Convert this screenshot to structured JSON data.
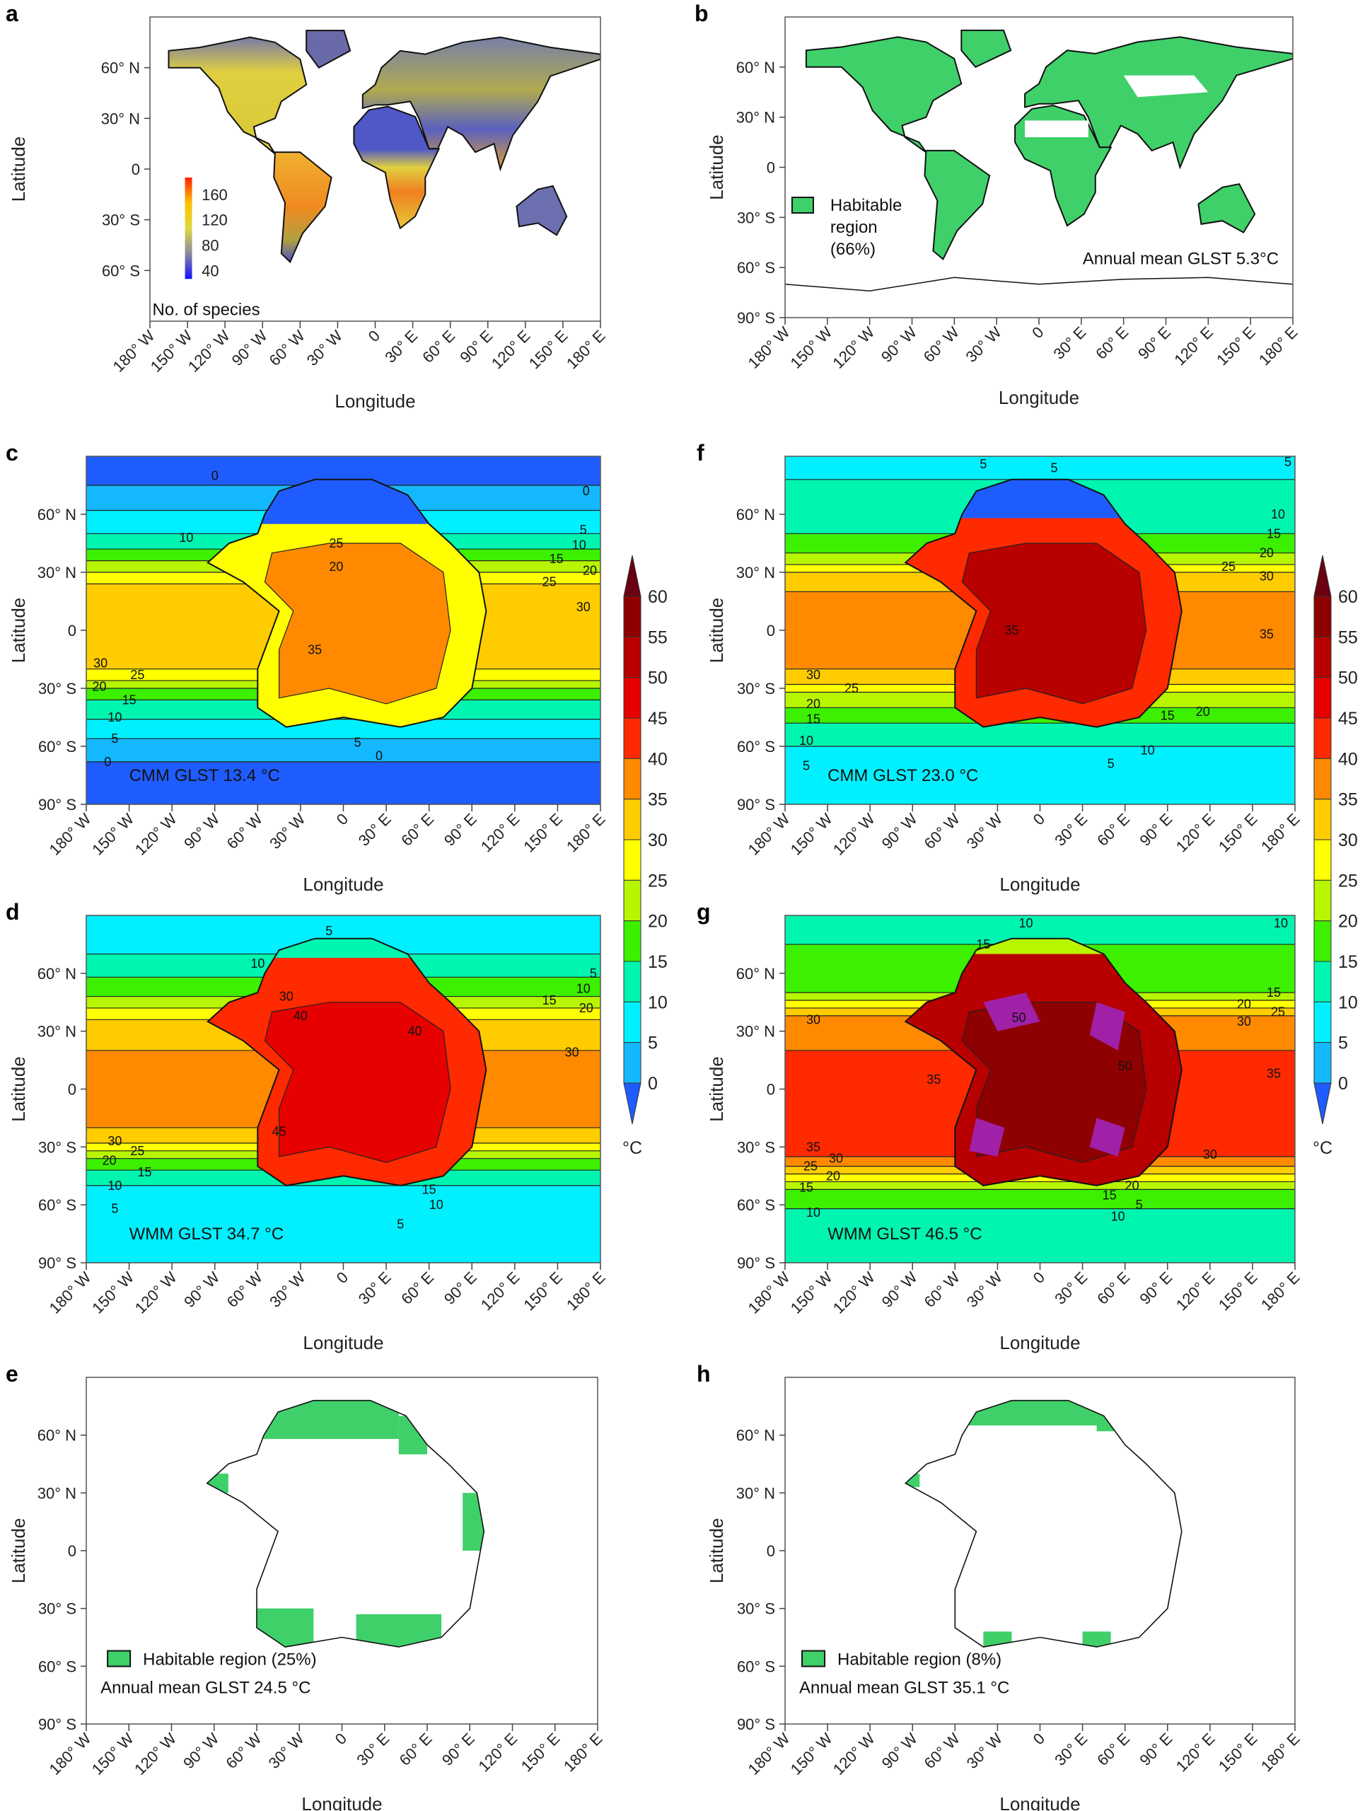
{
  "figure": {
    "colors": {
      "habitable": "#3fd06a",
      "temperature_scale": [
        "#1f5cff",
        "#14b8ff",
        "#00f0ff",
        "#00f5b0",
        "#3cf000",
        "#b8f500",
        "#ffff00",
        "#ffcc00",
        "#ff8a00",
        "#ff2a00",
        "#e60000",
        "#b80000",
        "#8f0000",
        "#6b0012"
      ],
      "hot_extreme": "#a020a8"
    },
    "temperature_colorbar": {
      "ticks": [
        "0",
        "5",
        "10",
        "15",
        "20",
        "25",
        "30",
        "35",
        "40",
        "45",
        "50",
        "55",
        "60"
      ],
      "unit": "°C",
      "range": [
        0,
        60
      ],
      "extends": "both"
    },
    "species_colorbar": {
      "ticks": [
        "40",
        "80",
        "120",
        "160"
      ],
      "label": "No. of species",
      "colors": [
        "#1010ff",
        "#8888a0",
        "#e0d840",
        "#ffc000",
        "#ff2000"
      ]
    }
  },
  "chart_data": [
    {
      "id": "a",
      "type": "heatmap",
      "letter": "a",
      "xlabel": "Longitude",
      "ylabel": "Latitude",
      "xlim": [
        -180,
        180
      ],
      "ylim": [
        -90,
        90
      ],
      "lat_ticks": [
        "60° N",
        "30° N",
        "0",
        "30° S",
        "60° S"
      ],
      "lat_values": [
        60,
        30,
        0,
        -30,
        -60
      ],
      "lon_ticks": [
        "180° W",
        "150° W",
        "120° W",
        "90° W",
        "60° W",
        "30° W",
        "0",
        "30° E",
        "60° E",
        "90° E",
        "120° E",
        "150° E",
        "180° E"
      ],
      "geography": "present-day"
    },
    {
      "id": "b",
      "type": "map",
      "letter": "b",
      "xlabel": "Longitude",
      "ylabel": "Latitude",
      "xlim": [
        -180,
        180
      ],
      "ylim": [
        -90,
        90
      ],
      "lat_ticks": [
        "60° N",
        "30° N",
        "0",
        "30° S",
        "60° S",
        "90° S"
      ],
      "lat_values": [
        60,
        30,
        0,
        -30,
        -60,
        -90
      ],
      "lon_ticks": [
        "180° W",
        "150° W",
        "120° W",
        "90° W",
        "60° W",
        "30° W",
        "0",
        "30° E",
        "60° E",
        "90° E",
        "120° E",
        "150° E",
        "180° E"
      ],
      "geography": "present-day",
      "legend": {
        "line1": "Habitable",
        "line2": "region",
        "line3": "(66%)"
      },
      "annotation": "Annual mean GLST 5.3°C",
      "habitable_percent": 66
    },
    {
      "id": "c",
      "type": "heatmap",
      "letter": "c",
      "xlabel": "Longitude",
      "ylabel": "Latitude",
      "xlim": [
        -180,
        180
      ],
      "ylim": [
        -90,
        90
      ],
      "lat_ticks": [
        "60° N",
        "30° N",
        "0",
        "30° S",
        "60° S",
        "90° S"
      ],
      "lat_values": [
        60,
        30,
        0,
        -30,
        -60,
        -90
      ],
      "lon_ticks": [
        "180° W",
        "150° W",
        "120° W",
        "90° W",
        "60° W",
        "30° W",
        "0",
        "30° E",
        "60° E",
        "90° E",
        "120° E",
        "150° E",
        "180° E"
      ],
      "geography": "pangaea-ultima",
      "annotation": "CMM GLST 13.4 °C",
      "zonal_bands_C": [
        [
          90,
          75,
          -2
        ],
        [
          75,
          62,
          3
        ],
        [
          62,
          50,
          8
        ],
        [
          50,
          42,
          12
        ],
        [
          42,
          36,
          17
        ],
        [
          36,
          30,
          22
        ],
        [
          30,
          24,
          27
        ],
        [
          24,
          -20,
          33
        ],
        [
          -20,
          -26,
          27
        ],
        [
          -26,
          -30,
          22
        ],
        [
          -30,
          -36,
          17
        ],
        [
          -36,
          -46,
          12
        ],
        [
          -46,
          -56,
          8
        ],
        [
          -56,
          -68,
          3
        ],
        [
          -68,
          -90,
          -2
        ]
      ],
      "land_C": 27,
      "land_core_C": 37,
      "polar_cap_C": -2,
      "polar_cap_lat": 55,
      "contour_labels": [
        {
          "v": "0",
          "lon": -90,
          "lat": 80
        },
        {
          "v": "10",
          "lon": -110,
          "lat": 48
        },
        {
          "v": "30",
          "lon": -170,
          "lat": -17
        },
        {
          "v": "25",
          "lon": -160,
          "lat": -23
        },
        {
          "v": "20",
          "lon": -155,
          "lat": -29
        },
        {
          "v": "15",
          "lon": -150,
          "lat": -36
        },
        {
          "v": "10",
          "lon": -160,
          "lat": -45
        },
        {
          "v": "5",
          "lon": -160,
          "lat": -56
        },
        {
          "v": "0",
          "lon": -165,
          "lat": -68
        },
        {
          "v": "0",
          "lon": 170,
          "lat": 72
        },
        {
          "v": "5",
          "lon": 168,
          "lat": 52
        },
        {
          "v": "10",
          "lon": 165,
          "lat": 44
        },
        {
          "v": "15",
          "lon": 165,
          "lat": 37
        },
        {
          "v": "20",
          "lon": 162,
          "lat": 31
        },
        {
          "v": "25",
          "lon": 160,
          "lat": 25
        },
        {
          "v": "30",
          "lon": 168,
          "lat": 12
        },
        {
          "v": "35",
          "lon": -20,
          "lat": -10
        },
        {
          "v": "25",
          "lon": -5,
          "lat": 45
        },
        {
          "v": "20",
          "lon": -5,
          "lat": 33
        },
        {
          "v": "5",
          "lon": 10,
          "lat": -58
        },
        {
          "v": "0",
          "lon": 25,
          "lat": -65
        }
      ]
    },
    {
      "id": "f",
      "type": "heatmap",
      "letter": "f",
      "xlabel": "Longitude",
      "ylabel": "Latitude",
      "xlim": [
        -180,
        180
      ],
      "ylim": [
        -90,
        90
      ],
      "lat_ticks": [
        "60° N",
        "30° N",
        "0",
        "30° S",
        "60° S",
        "90° S"
      ],
      "lat_values": [
        60,
        30,
        0,
        -30,
        -60,
        -90
      ],
      "lon_ticks": [
        "180° W",
        "150° W",
        "120° W",
        "90° W",
        "60° W",
        "30° W",
        "0",
        "30° E",
        "60° E",
        "90° E",
        "120° E",
        "150° E",
        "180° E"
      ],
      "geography": "pangaea-ultima",
      "annotation": "CMM GLST 23.0 °C",
      "zonal_bands_C": [
        [
          90,
          78,
          7
        ],
        [
          78,
          50,
          12
        ],
        [
          50,
          40,
          17
        ],
        [
          40,
          34,
          22
        ],
        [
          34,
          30,
          27
        ],
        [
          30,
          20,
          32
        ],
        [
          20,
          -20,
          38
        ],
        [
          -20,
          -28,
          32
        ],
        [
          -28,
          -32,
          27
        ],
        [
          -32,
          -40,
          22
        ],
        [
          -40,
          -48,
          17
        ],
        [
          -48,
          -60,
          12
        ],
        [
          -60,
          -90,
          7
        ]
      ],
      "land_C": 43,
      "land_core_C": 52,
      "polar_cap_C": -2,
      "polar_cap_lat": 58,
      "contour_labels": [
        {
          "v": "5",
          "lon": -40,
          "lat": 86
        },
        {
          "v": "5",
          "lon": 10,
          "lat": 84
        },
        {
          "v": "5",
          "lon": 175,
          "lat": 87
        },
        {
          "v": "10",
          "lon": 168,
          "lat": 60
        },
        {
          "v": "15",
          "lon": 165,
          "lat": 50
        },
        {
          "v": "20",
          "lon": 160,
          "lat": 40
        },
        {
          "v": "25",
          "lon": 165,
          "lat": 33
        },
        {
          "v": "30",
          "lon": 160,
          "lat": 28
        },
        {
          "v": "35",
          "lon": 160,
          "lat": -2
        },
        {
          "v": "30",
          "lon": -160,
          "lat": -23
        },
        {
          "v": "25",
          "lon": -165,
          "lat": -30
        },
        {
          "v": "20",
          "lon": -160,
          "lat": -38
        },
        {
          "v": "15",
          "lon": -160,
          "lat": -46
        },
        {
          "v": "10",
          "lon": -165,
          "lat": -57
        },
        {
          "v": "5",
          "lon": -165,
          "lat": -70
        },
        {
          "v": "5",
          "lon": 50,
          "lat": -69
        },
        {
          "v": "10",
          "lon": 60,
          "lat": -62
        },
        {
          "v": "15",
          "lon": 90,
          "lat": -44
        },
        {
          "v": "20",
          "lon": 115,
          "lat": -42
        },
        {
          "v": "35",
          "lon": -20,
          "lat": 0
        }
      ]
    },
    {
      "id": "d",
      "type": "heatmap",
      "letter": "d",
      "xlabel": "Longitude",
      "ylabel": "Latitude",
      "xlim": [
        -180,
        180
      ],
      "ylim": [
        -90,
        90
      ],
      "lat_ticks": [
        "60° N",
        "30° N",
        "0",
        "30° S",
        "60° S",
        "90° S"
      ],
      "lat_values": [
        60,
        30,
        0,
        -30,
        -60,
        -90
      ],
      "lon_ticks": [
        "180° W",
        "150° W",
        "120° W",
        "90° W",
        "60° W",
        "30° W",
        "0",
        "30° E",
        "60° E",
        "90° E",
        "120° E",
        "150° E",
        "180° E"
      ],
      "geography": "pangaea-ultima",
      "annotation": "WMM GLST 34.7 °C",
      "zonal_bands_C": [
        [
          90,
          70,
          7
        ],
        [
          70,
          58,
          12
        ],
        [
          58,
          48,
          17
        ],
        [
          48,
          42,
          22
        ],
        [
          42,
          36,
          27
        ],
        [
          36,
          20,
          32
        ],
        [
          20,
          -20,
          37
        ],
        [
          -20,
          -28,
          32
        ],
        [
          -28,
          -32,
          27
        ],
        [
          -32,
          -36,
          22
        ],
        [
          -36,
          -42,
          17
        ],
        [
          -42,
          -50,
          12
        ],
        [
          -50,
          -90,
          7
        ]
      ],
      "land_C": 43,
      "land_core_C": 48,
      "polar_cap_C": 12,
      "polar_cap_lat": 68,
      "contour_labels": [
        {
          "v": "5",
          "lon": -10,
          "lat": 82
        },
        {
          "v": "10",
          "lon": -60,
          "lat": 65
        },
        {
          "v": "30",
          "lon": -40,
          "lat": 48
        },
        {
          "v": "40",
          "lon": -30,
          "lat": 38
        },
        {
          "v": "5",
          "lon": 175,
          "lat": 60
        },
        {
          "v": "10",
          "lon": 168,
          "lat": 52
        },
        {
          "v": "15",
          "lon": 160,
          "lat": 46
        },
        {
          "v": "20",
          "lon": 170,
          "lat": 42
        },
        {
          "v": "30",
          "lon": 160,
          "lat": 19
        },
        {
          "v": "30",
          "lon": -160,
          "lat": -27
        },
        {
          "v": "25",
          "lon": -160,
          "lat": -32
        },
        {
          "v": "20",
          "lon": -148,
          "lat": -37
        },
        {
          "v": "15",
          "lon": -155,
          "lat": -43
        },
        {
          "v": "10",
          "lon": -160,
          "lat": -50
        },
        {
          "v": "5",
          "lon": -160,
          "lat": -62
        },
        {
          "v": "5",
          "lon": 40,
          "lat": -70
        },
        {
          "v": "10",
          "lon": 65,
          "lat": -60
        },
        {
          "v": "15",
          "lon": 60,
          "lat": -52
        },
        {
          "v": "45",
          "lon": -45,
          "lat": -22
        },
        {
          "v": "40",
          "lon": 50,
          "lat": 30
        }
      ]
    },
    {
      "id": "g",
      "type": "heatmap",
      "letter": "g",
      "xlabel": "Longitude",
      "ylabel": "Latitude",
      "xlim": [
        -180,
        180
      ],
      "ylim": [
        -90,
        90
      ],
      "lat_ticks": [
        "60° N",
        "30° N",
        "0",
        "30° S",
        "60° S",
        "90° S"
      ],
      "lat_values": [
        60,
        30,
        0,
        -30,
        -60,
        -90
      ],
      "lon_ticks": [
        "180° W",
        "150° W",
        "120° W",
        "90° W",
        "60° W",
        "30° W",
        "0",
        "30° E",
        "60° E",
        "90° E",
        "120° E",
        "150° E",
        "180° E"
      ],
      "geography": "pangaea-ultima",
      "annotation": "WMM GLST 46.5 °C",
      "zonal_bands_C": [
        [
          90,
          75,
          12
        ],
        [
          75,
          50,
          17
        ],
        [
          50,
          46,
          22
        ],
        [
          46,
          42,
          27
        ],
        [
          42,
          38,
          32
        ],
        [
          38,
          20,
          37
        ],
        [
          20,
          -35,
          42
        ],
        [
          -35,
          -40,
          37
        ],
        [
          -40,
          -44,
          32
        ],
        [
          -44,
          -48,
          27
        ],
        [
          -48,
          -52,
          22
        ],
        [
          -52,
          -62,
          17
        ],
        [
          -62,
          -90,
          12
        ]
      ],
      "land_C": 52,
      "land_core_C": 57,
      "extreme_C": 62,
      "polar_cap_C": 22,
      "polar_cap_lat": 70,
      "contour_labels": [
        {
          "v": "10",
          "lon": -10,
          "lat": 86
        },
        {
          "v": "15",
          "lon": -40,
          "lat": 75
        },
        {
          "v": "10",
          "lon": 170,
          "lat": 86
        },
        {
          "v": "15",
          "lon": 165,
          "lat": 50
        },
        {
          "v": "20",
          "lon": 160,
          "lat": 44
        },
        {
          "v": "25",
          "lon": 168,
          "lat": 40
        },
        {
          "v": "30",
          "lon": 160,
          "lat": 35
        },
        {
          "v": "35",
          "lon": 165,
          "lat": 8
        },
        {
          "v": "30",
          "lon": -160,
          "lat": 36
        },
        {
          "v": "35",
          "lon": -75,
          "lat": 5
        },
        {
          "v": "50",
          "lon": -15,
          "lat": 37
        },
        {
          "v": "50",
          "lon": 60,
          "lat": 12
        },
        {
          "v": "35",
          "lon": -160,
          "lat": -30
        },
        {
          "v": "30",
          "lon": -160,
          "lat": -36
        },
        {
          "v": "25",
          "lon": -162,
          "lat": -40
        },
        {
          "v": "20",
          "lon": -162,
          "lat": -45
        },
        {
          "v": "15",
          "lon": -165,
          "lat": -51
        },
        {
          "v": "10",
          "lon": -160,
          "lat": -64
        },
        {
          "v": "30",
          "lon": 120,
          "lat": -34
        },
        {
          "v": "20",
          "lon": 65,
          "lat": -50
        },
        {
          "v": "15",
          "lon": 65,
          "lat": -55
        },
        {
          "v": "5",
          "lon": 70,
          "lat": -60
        },
        {
          "v": "10",
          "lon": 55,
          "lat": -66
        }
      ]
    },
    {
      "id": "e",
      "type": "map",
      "letter": "e",
      "xlabel": "Longitude",
      "ylabel": "Latitude",
      "xlim": [
        -180,
        180
      ],
      "ylim": [
        -90,
        90
      ],
      "lat_ticks": [
        "60° N",
        "30° N",
        "0",
        "30° S",
        "60° S",
        "90° S"
      ],
      "lat_values": [
        60,
        30,
        0,
        -30,
        -60,
        -90
      ],
      "lon_ticks": [
        "180° W",
        "150° W",
        "120° W",
        "90° W",
        "60° W",
        "30° W",
        "0",
        "30° E",
        "60° E",
        "90° E",
        "120° E",
        "150° E",
        "180° E"
      ],
      "geography": "pangaea-ultima",
      "legend": {
        "line1": "Habitable region (25%)"
      },
      "annotation": "Annual mean GLST 24.5 °C",
      "habitable_percent": 25
    },
    {
      "id": "h",
      "type": "map",
      "letter": "h",
      "xlabel": "Longitude",
      "ylabel": "Latitude",
      "xlim": [
        -180,
        180
      ],
      "ylim": [
        -90,
        90
      ],
      "lat_ticks": [
        "60° N",
        "30° N",
        "0",
        "30° S",
        "60° S",
        "90° S"
      ],
      "lat_values": [
        60,
        30,
        0,
        -30,
        -60,
        -90
      ],
      "lon_ticks": [
        "180° W",
        "150° W",
        "120° W",
        "90° W",
        "60° W",
        "30° W",
        "0",
        "30° E",
        "60° E",
        "90° E",
        "120° E",
        "150° E",
        "180° E"
      ],
      "geography": "pangaea-ultima",
      "legend": {
        "line1": "Habitable region (8%)"
      },
      "annotation": "Annual mean GLST 35.1 °C",
      "habitable_percent": 8
    }
  ]
}
